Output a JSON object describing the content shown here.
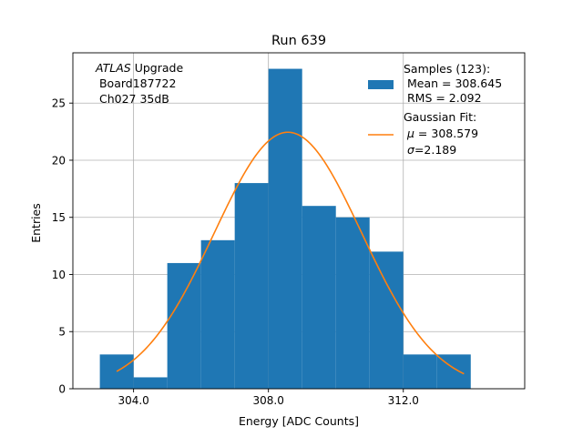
{
  "chart_data": {
    "type": "bar",
    "title": "Run 639",
    "xlabel": "Energy [ADC Counts]",
    "ylabel": "Entries",
    "xlim": [
      302.2,
      315.6
    ],
    "ylim": [
      0,
      29.4
    ],
    "grid": true,
    "x_ticks": [
      304.0,
      308.0,
      312.0
    ],
    "x_tick_labels": [
      "304.0",
      "308.0",
      "312.0"
    ],
    "y_ticks": [
      0,
      5,
      10,
      15,
      20,
      25
    ],
    "y_tick_labels": [
      "0",
      "5",
      "10",
      "15",
      "20",
      "25"
    ],
    "histogram": {
      "name": "Samples (123)",
      "bin_edges": [
        303.0,
        304.0,
        305.0,
        306.0,
        307.0,
        308.0,
        309.0,
        310.0,
        311.0,
        312.0,
        313.0,
        314.0
      ],
      "counts": [
        3,
        1,
        11,
        13,
        18,
        28,
        16,
        15,
        12,
        3,
        3
      ],
      "color": "#1f77b4"
    },
    "fit": {
      "name": "Gaussian Fit",
      "type": "gaussian",
      "mu": 308.579,
      "sigma": 2.189,
      "amplitude": 22.45,
      "x_range": [
        303.5,
        313.8
      ],
      "color": "#ff7f0e"
    },
    "annotation": {
      "italic_word": "ATLAS",
      "line1_rest": " Upgrade",
      "line2": " Board187722",
      "line3": " Ch027 35dB"
    },
    "legend": {
      "placement": "top-right",
      "samples_title": "Samples (123):",
      "samples_mean": " Mean = 308.645",
      "samples_rms": " RMS = 2.092",
      "fit_title": "Gaussian Fit:",
      "fit_mu_symbol": "μ",
      "fit_mu_value": " = 308.579",
      "fit_sigma_symbol": "σ",
      "fit_sigma_value": "=2.189"
    }
  }
}
